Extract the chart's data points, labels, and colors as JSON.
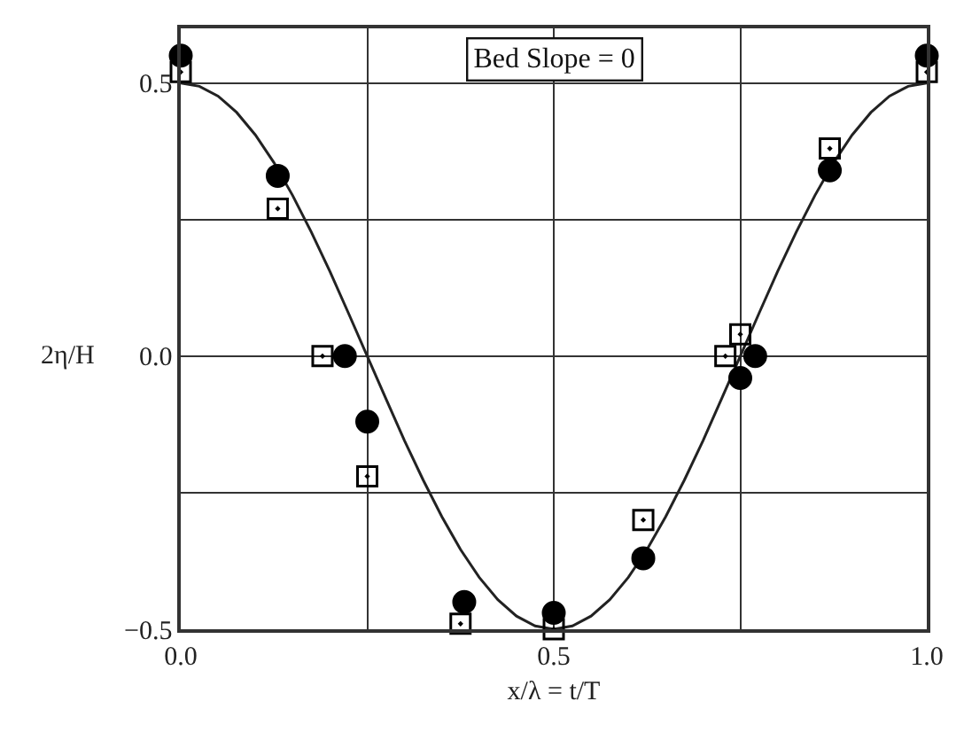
{
  "chart_data": {
    "type": "scatter",
    "xlabel": "x/λ = t/T",
    "ylabel": "2η/H",
    "annotations": [
      "Bed Slope = 0"
    ],
    "xlim": [
      0,
      1
    ],
    "xticks": [
      {
        "value": 0,
        "label": "0.0"
      },
      {
        "value": 0.25,
        "label": null
      },
      {
        "value": 0.5,
        "label": "0.5"
      },
      {
        "value": 0.75,
        "label": null
      },
      {
        "value": 1,
        "label": "1.0"
      }
    ],
    "ylim": [
      -0.5,
      0.6
    ],
    "yticks": [
      {
        "value": -0.5,
        "label": "−0.5"
      },
      {
        "value": -0.25,
        "label": null
      },
      {
        "value": 0,
        "label": "0.0"
      },
      {
        "value": 0.25,
        "label": null
      },
      {
        "value": 0.5,
        "label": "0.5"
      }
    ],
    "grid": true,
    "series": [
      {
        "type": "line",
        "color": "#222222",
        "marker": "none",
        "line_style": "solid",
        "x": [
          0,
          0.025,
          0.05,
          0.075,
          0.1,
          0.125,
          0.15,
          0.175,
          0.2,
          0.225,
          0.25,
          0.275,
          0.3,
          0.325,
          0.35,
          0.375,
          0.4,
          0.425,
          0.45,
          0.475,
          0.5,
          0.525,
          0.55,
          0.575,
          0.6,
          0.625,
          0.65,
          0.675,
          0.7,
          0.725,
          0.75,
          0.775,
          0.8,
          0.825,
          0.85,
          0.875,
          0.9,
          0.925,
          0.95,
          0.975,
          1
        ],
        "values": [
          0.5,
          0.494,
          0.476,
          0.446,
          0.405,
          0.354,
          0.294,
          0.227,
          0.155,
          0.078,
          0,
          -0.078,
          -0.155,
          -0.227,
          -0.294,
          -0.354,
          -0.405,
          -0.446,
          -0.476,
          -0.494,
          -0.5,
          -0.494,
          -0.476,
          -0.446,
          -0.405,
          -0.354,
          -0.294,
          -0.227,
          -0.155,
          -0.078,
          0,
          0.078,
          0.155,
          0.227,
          0.294,
          0.354,
          0.405,
          0.446,
          0.476,
          0.494,
          0.5
        ]
      },
      {
        "type": "scatter",
        "color": "#000000",
        "marker": "circle",
        "x": [
          0,
          0.13,
          0.22,
          0.25,
          0.38,
          0.5,
          0.62,
          0.75,
          0.77,
          0.87,
          1
        ],
        "values": [
          0.55,
          0.33,
          0,
          -0.12,
          -0.45,
          -0.47,
          -0.37,
          -0.04,
          0,
          0.34,
          0.55
        ]
      },
      {
        "type": "scatter",
        "color": "#000000",
        "marker": "square",
        "x": [
          0,
          0.13,
          0.19,
          0.25,
          0.375,
          0.5,
          0.62,
          0.73,
          0.75,
          0.87,
          1
        ],
        "values": [
          0.52,
          0.27,
          0,
          -0.22,
          -0.49,
          -0.5,
          -0.3,
          0,
          0.04,
          0.38,
          0.52
        ]
      }
    ]
  }
}
